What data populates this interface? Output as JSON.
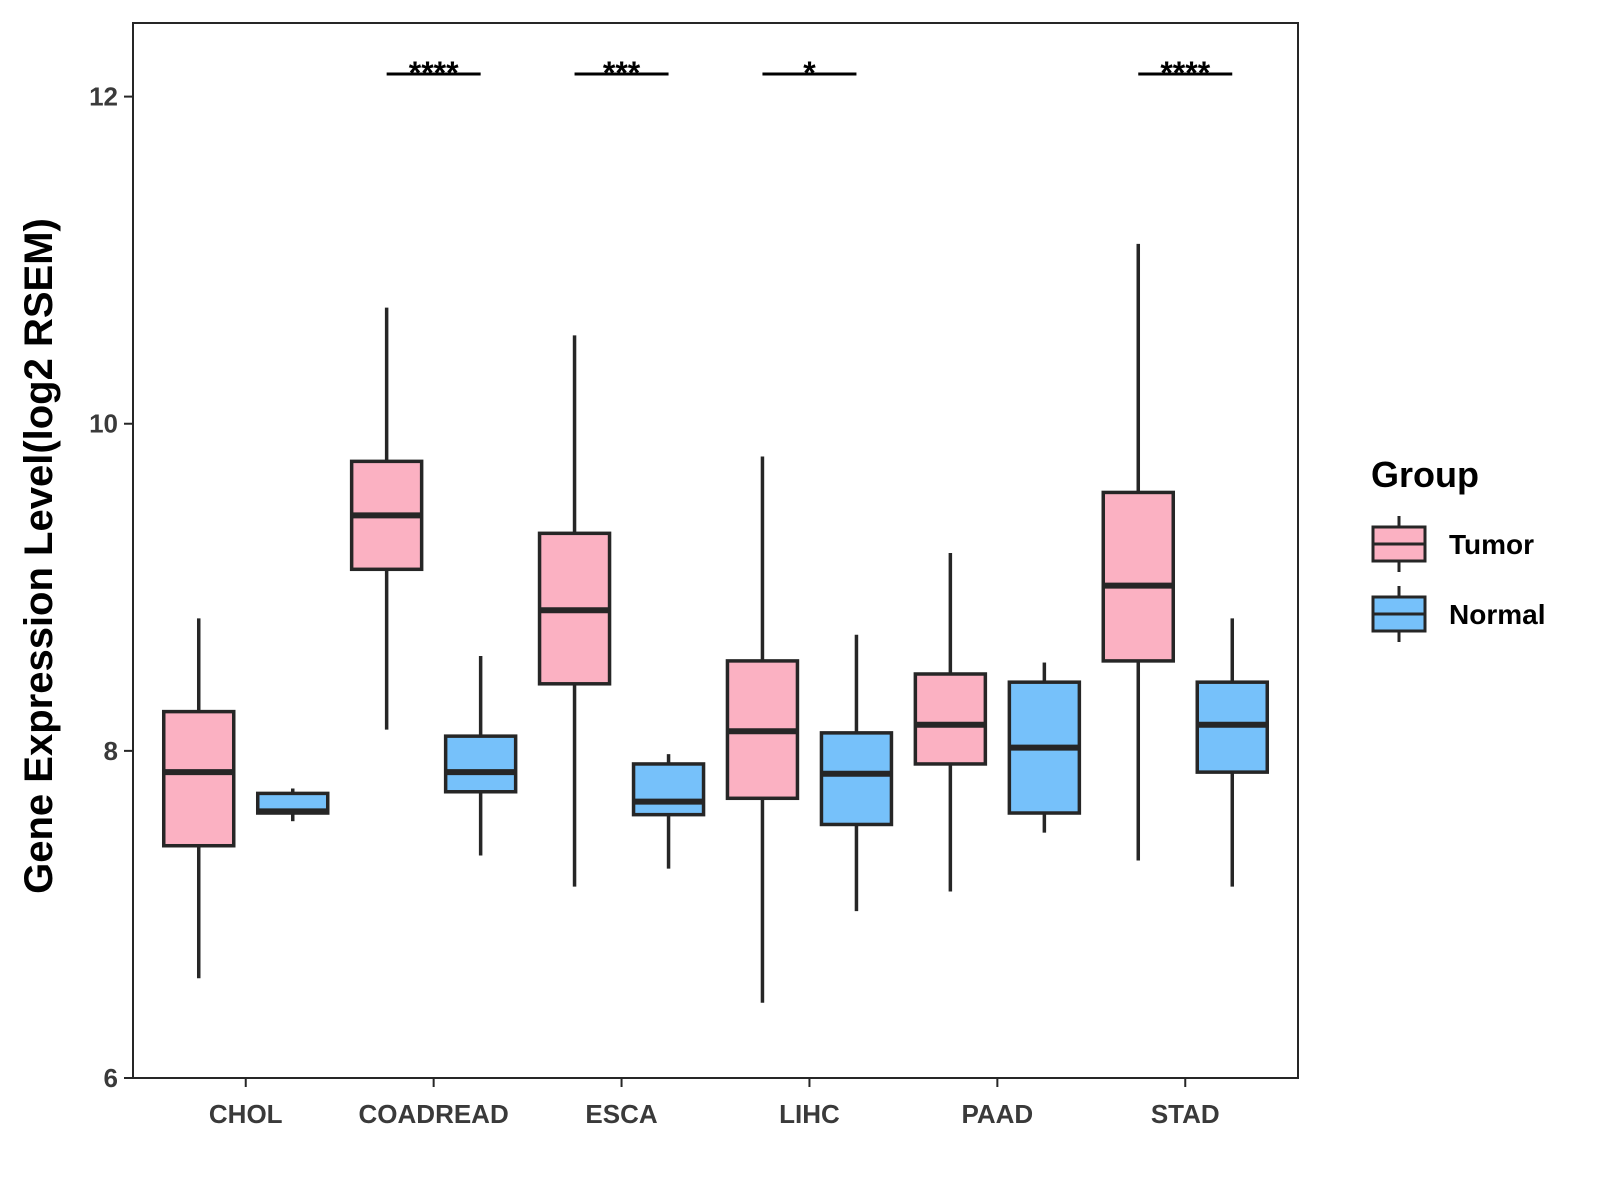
{
  "chart_data": {
    "type": "boxplot",
    "title": "",
    "xlabel": "",
    "ylabel": "Gene Expression Level(log2 RSEM)",
    "ylim": [
      6,
      12.45
    ],
    "yticks": [
      6,
      8,
      10,
      12
    ],
    "grid": false,
    "legend": {
      "title": "Group",
      "position": "right",
      "entries": [
        {
          "name": "Tumor",
          "color": "#fbb1c2"
        },
        {
          "name": "Normal",
          "color": "#76c1fa"
        }
      ]
    },
    "categories": [
      "CHOL",
      "COADREAD",
      "ESCA",
      "LIHC",
      "PAAD",
      "STAD"
    ],
    "series": [
      {
        "name": "Tumor",
        "color": "#fbb1c2",
        "boxes": [
          {
            "min": 6.61,
            "q1": 7.42,
            "median": 7.87,
            "q3": 8.24,
            "max": 8.81
          },
          {
            "min": 8.13,
            "q1": 9.11,
            "median": 9.44,
            "q3": 9.77,
            "max": 10.71
          },
          {
            "min": 7.17,
            "q1": 8.41,
            "median": 8.86,
            "q3": 9.33,
            "max": 10.54
          },
          {
            "min": 6.46,
            "q1": 7.71,
            "median": 8.12,
            "q3": 8.55,
            "max": 9.8
          },
          {
            "min": 7.14,
            "q1": 7.92,
            "median": 8.16,
            "q3": 8.47,
            "max": 9.21
          },
          {
            "min": 7.33,
            "q1": 8.55,
            "median": 9.01,
            "q3": 9.58,
            "max": 11.1
          }
        ]
      },
      {
        "name": "Normal",
        "color": "#76c1fa",
        "boxes": [
          {
            "min": 7.57,
            "q1": 7.62,
            "median": 7.63,
            "q3": 7.74,
            "max": 7.77
          },
          {
            "min": 7.36,
            "q1": 7.75,
            "median": 7.87,
            "q3": 8.09,
            "max": 8.58
          },
          {
            "min": 7.28,
            "q1": 7.61,
            "median": 7.69,
            "q3": 7.92,
            "max": 7.98
          },
          {
            "min": 7.02,
            "q1": 7.55,
            "median": 7.86,
            "q3": 8.11,
            "max": 8.71
          },
          {
            "min": 7.5,
            "q1": 7.62,
            "median": 8.02,
            "q3": 8.42,
            "max": 8.54
          },
          {
            "min": 7.17,
            "q1": 7.87,
            "median": 8.16,
            "q3": 8.42,
            "max": 8.81
          }
        ]
      }
    ],
    "significance": [
      {
        "category": "COADREAD",
        "label": "****"
      },
      {
        "category": "ESCA",
        "label": "***"
      },
      {
        "category": "LIHC",
        "label": "*"
      },
      {
        "category": "STAD",
        "label": "****"
      }
    ]
  }
}
